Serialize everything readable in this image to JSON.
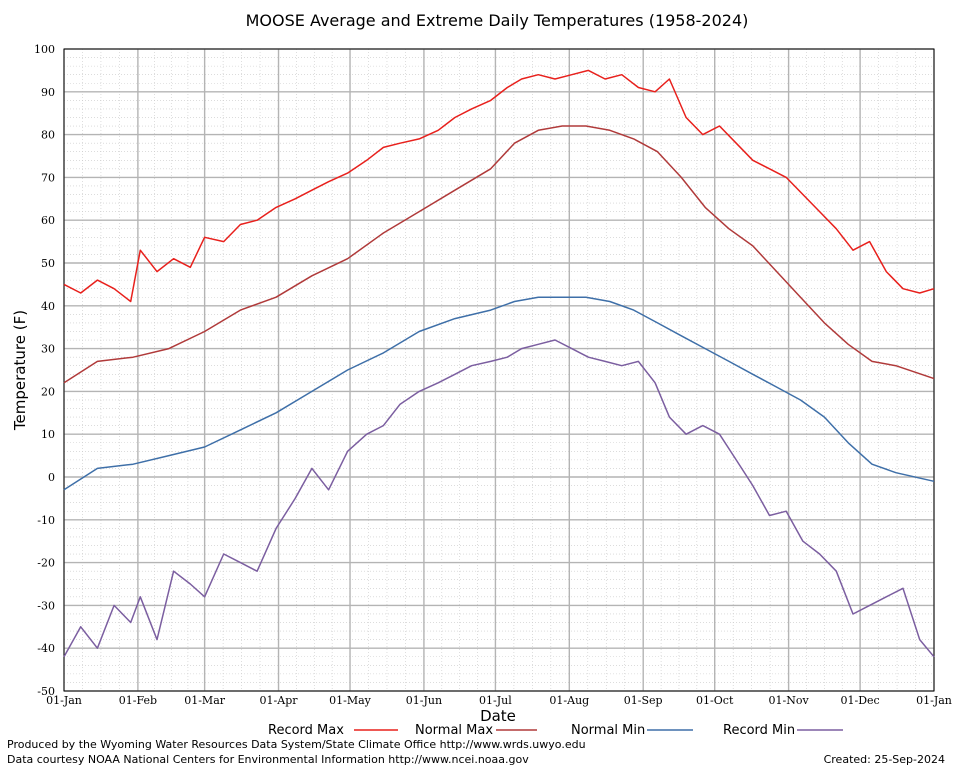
{
  "chart_data": {
    "type": "line",
    "title": "MOOSE Average and Extreme Daily Temperatures (1958-2024)",
    "xlabel": "Date",
    "ylabel": "Temperature (F)",
    "ylim": [
      -50,
      100
    ],
    "yticks": [
      100,
      90,
      80,
      70,
      60,
      50,
      40,
      30,
      20,
      10,
      0,
      -10,
      -20,
      -30,
      -40,
      -50
    ],
    "xticks": [
      {
        "label": "01-Jan",
        "day": 1
      },
      {
        "label": "01-Feb",
        "day": 32
      },
      {
        "label": "01-Mar",
        "day": 60
      },
      {
        "label": "01-Apr",
        "day": 91
      },
      {
        "label": "01-May",
        "day": 121
      },
      {
        "label": "01-Jun",
        "day": 152
      },
      {
        "label": "01-Jul",
        "day": 182
      },
      {
        "label": "01-Aug",
        "day": 213
      },
      {
        "label": "01-Sep",
        "day": 244
      },
      {
        "label": "01-Oct",
        "day": 274
      },
      {
        "label": "01-Nov",
        "day": 305
      },
      {
        "label": "01-Dec",
        "day": 335
      },
      {
        "label": "01-Jan",
        "day": 366
      }
    ],
    "grid": true,
    "legend_position": "bottom",
    "series": [
      {
        "name": "Record Max",
        "color": "#e8201c",
        "days": [
          1,
          8,
          15,
          22,
          29,
          33,
          40,
          47,
          54,
          60,
          68,
          75,
          82,
          90,
          98,
          105,
          112,
          120,
          128,
          135,
          142,
          150,
          158,
          165,
          172,
          180,
          187,
          193,
          200,
          207,
          214,
          221,
          228,
          235,
          242,
          249,
          255,
          262,
          269,
          276,
          283,
          290,
          297,
          304,
          311,
          318,
          325,
          332,
          339,
          346,
          353,
          360,
          366
        ],
        "values": [
          45,
          43,
          46,
          44,
          41,
          53,
          48,
          51,
          49,
          56,
          55,
          59,
          60,
          63,
          65,
          67,
          69,
          71,
          74,
          77,
          78,
          79,
          81,
          84,
          86,
          88,
          91,
          93,
          94,
          93,
          94,
          95,
          93,
          94,
          91,
          90,
          93,
          84,
          80,
          82,
          78,
          74,
          72,
          70,
          66,
          62,
          58,
          53,
          55,
          48,
          44,
          43,
          44
        ]
      },
      {
        "name": "Normal Max",
        "color": "#b03a3a",
        "days": [
          1,
          15,
          30,
          45,
          60,
          75,
          90,
          105,
          120,
          135,
          150,
          165,
          180,
          190,
          200,
          210,
          220,
          230,
          240,
          250,
          260,
          270,
          280,
          290,
          300,
          310,
          320,
          330,
          340,
          350,
          366
        ],
        "values": [
          22,
          27,
          28,
          30,
          34,
          39,
          42,
          47,
          51,
          57,
          62,
          67,
          72,
          78,
          81,
          82,
          82,
          81,
          79,
          76,
          70,
          63,
          58,
          54,
          48,
          42,
          36,
          31,
          27,
          26,
          23
        ]
      },
      {
        "name": "Normal Min",
        "color": "#3e6fa8",
        "days": [
          1,
          15,
          30,
          45,
          60,
          75,
          90,
          105,
          120,
          135,
          150,
          165,
          180,
          190,
          200,
          210,
          220,
          230,
          240,
          250,
          260,
          270,
          280,
          290,
          300,
          310,
          320,
          330,
          340,
          350,
          366
        ],
        "values": [
          -3,
          2,
          3,
          5,
          7,
          11,
          15,
          20,
          25,
          29,
          34,
          37,
          39,
          41,
          42,
          42,
          42,
          41,
          39,
          36,
          33,
          30,
          27,
          24,
          21,
          18,
          14,
          8,
          3,
          1,
          -1
        ]
      },
      {
        "name": "Record Min",
        "color": "#7b5ea0",
        "days": [
          1,
          8,
          15,
          22,
          29,
          33,
          40,
          47,
          54,
          60,
          68,
          75,
          82,
          90,
          98,
          105,
          112,
          120,
          128,
          135,
          142,
          150,
          158,
          165,
          172,
          180,
          187,
          193,
          200,
          207,
          214,
          221,
          228,
          235,
          242,
          249,
          255,
          262,
          269,
          276,
          283,
          290,
          297,
          304,
          311,
          318,
          325,
          332,
          339,
          346,
          353,
          360,
          366
        ],
        "values": [
          -42,
          -35,
          -40,
          -30,
          -34,
          -28,
          -38,
          -22,
          -25,
          -28,
          -18,
          -20,
          -22,
          -12,
          -5,
          2,
          -3,
          6,
          10,
          12,
          17,
          20,
          22,
          24,
          26,
          27,
          28,
          30,
          31,
          32,
          30,
          28,
          27,
          26,
          27,
          22,
          14,
          10,
          12,
          10,
          4,
          -2,
          -9,
          -8,
          -15,
          -18,
          -22,
          -32,
          -30,
          -28,
          -26,
          -38,
          -42
        ]
      }
    ]
  },
  "footer": {
    "line1": "Produced by the Wyoming Water Resources Data System/State Climate Office http://www.wrds.uwyo.edu",
    "line2": "Data courtesy NOAA National Centers for Environmental Information http://www.ncei.noaa.gov",
    "created": "Created:  25-Sep-2024"
  }
}
